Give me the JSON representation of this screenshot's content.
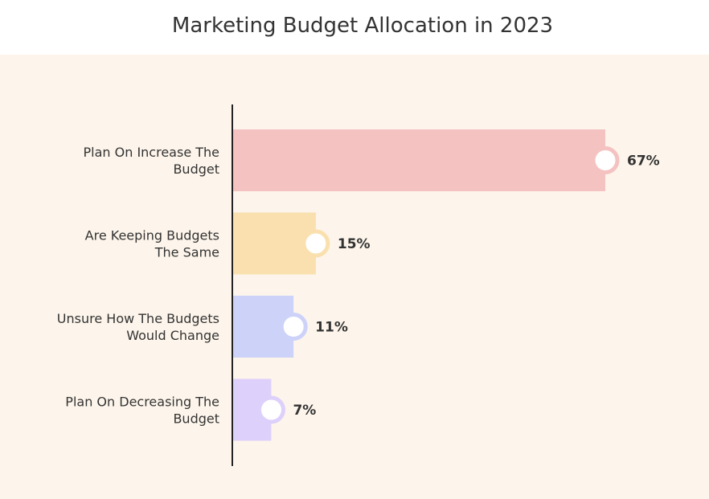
{
  "chart_data": {
    "type": "bar",
    "orientation": "horizontal",
    "title": "Marketing Budget Allocation in 2023",
    "categories": [
      "Plan On Increase The Budget",
      "Are Keeping Budgets The Same",
      "Unsure How The Budgets Would Change",
      "Plan On Decreasing The Budget"
    ],
    "category_lines": [
      [
        "Plan On Increase The",
        "Budget"
      ],
      [
        "Are Keeping Budgets",
        "The Same"
      ],
      [
        "Unsure How The Budgets",
        "Would Change"
      ],
      [
        "Plan On Decreasing The",
        "Budget"
      ]
    ],
    "values": [
      67,
      15,
      11,
      7
    ],
    "value_labels": [
      "67%",
      "15%",
      "11%",
      "7%"
    ],
    "value_unit": "%",
    "xlim": [
      0,
      67
    ],
    "grid": false,
    "colors": [
      "#f4c2c1",
      "#f9e0ae",
      "#cdd2f9",
      "#ddd0fb"
    ],
    "ring_colors": [
      "#f4c2c1",
      "#f9e0ae",
      "#cdd2f9",
      "#ddd0fb"
    ],
    "plot_background": "#fdf5eb",
    "axis_color": "#222222"
  }
}
